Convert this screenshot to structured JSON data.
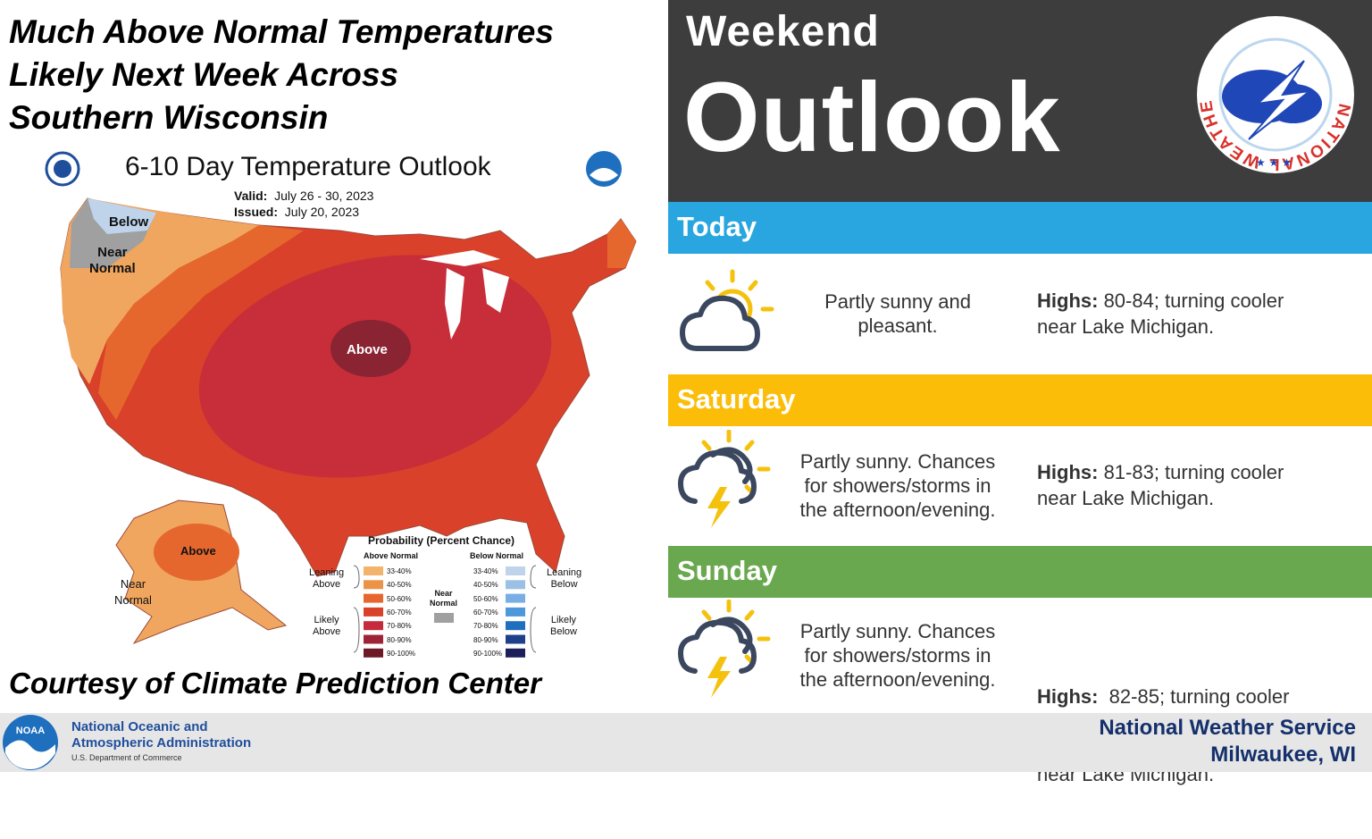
{
  "headline": {
    "lines": [
      "Much Above Normal Temperatures",
      "Likely Next Week Across",
      "Southern Wisconsin"
    ]
  },
  "map": {
    "title": "6-10 Day Temperature Outlook",
    "valid_label": "Valid:",
    "valid_value": "July 26 - 30, 2023",
    "issued_label": "Issued:",
    "issued_value": "July 20, 2023",
    "region_labels": {
      "below": "Below",
      "near_normal_line1": "Near",
      "near_normal_line2": "Normal",
      "above_conus": "Above",
      "above_alaska": "Above",
      "near_alaska_line1": "Near",
      "near_alaska_line2": "Normal"
    },
    "legend": {
      "title": "Probability (Percent Chance)",
      "above_header": "Above Normal",
      "below_header": "Below Normal",
      "near_normal_line1": "Near",
      "near_normal_line2": "Normal",
      "leaning_above_line1": "Leaning",
      "leaning_above_line2": "Above",
      "likely_above_line1": "Likely",
      "likely_above_line2": "Above",
      "leaning_below_line1": "Leaning",
      "leaning_below_line2": "Below",
      "likely_below_line1": "Likely",
      "likely_below_line2": "Below",
      "ranges": [
        "33-40%",
        "40-50%",
        "50-60%",
        "60-70%",
        "70-80%",
        "80-90%",
        "90-100%"
      ],
      "above_colors": [
        "#f2b46b",
        "#ed9348",
        "#e5672e",
        "#d9412a",
        "#c52b3c",
        "#9e2336",
        "#6e1a26"
      ],
      "below_colors": [
        "#bfd3ea",
        "#9cc0e5",
        "#78aee3",
        "#4d97dc",
        "#1f6fbf",
        "#1e3f8a",
        "#1c1f5a"
      ],
      "near_color": "#a0a0a0"
    },
    "courtesy": "Courtesy of Climate Prediction Center"
  },
  "header": {
    "line1": "Weekend",
    "line2": "Outlook"
  },
  "nws_logo": {
    "ring_text": "NATIONAL WEATHER SERVICE"
  },
  "noaa_logo_text": "NOAA",
  "days": [
    {
      "name": "Today",
      "bar_color": "#29a6e0",
      "icon": "partly-sunny-icon",
      "desc_lines": [
        "Partly sunny and",
        "pleasant."
      ],
      "highs_label": "Highs:",
      "highs_text": " 80-84; turning cooler",
      "highs_text2": "near Lake Michigan."
    },
    {
      "name": "Saturday",
      "bar_color": "#fbbd08",
      "icon": "thunderstorm-icon",
      "desc_lines": [
        "Partly sunny. Chances",
        "for showers/storms in",
        "the afternoon/evening."
      ],
      "highs_label": "Highs:",
      "highs_text": " 81-83; turning cooler",
      "highs_text2": "near Lake Michigan."
    },
    {
      "name": "Sunday",
      "bar_color": "#6aa84f",
      "icon": "thunderstorm-icon",
      "desc_lines": [
        "Partly sunny. Chances",
        "for showers/storms in",
        "the afternoon/evening."
      ],
      "highs_label": "Highs:",
      "highs_text": "  82-85; turning cooler",
      "highs_text2": "near Lake Michigan."
    }
  ],
  "footer": {
    "noaa_line1": "National Oceanic and",
    "noaa_line2": "Atmospheric Administration",
    "noaa_dept": "U.S. Department of Commerce",
    "nws_line1": "National Weather Service",
    "nws_line2": "Milwaukee, WI"
  }
}
